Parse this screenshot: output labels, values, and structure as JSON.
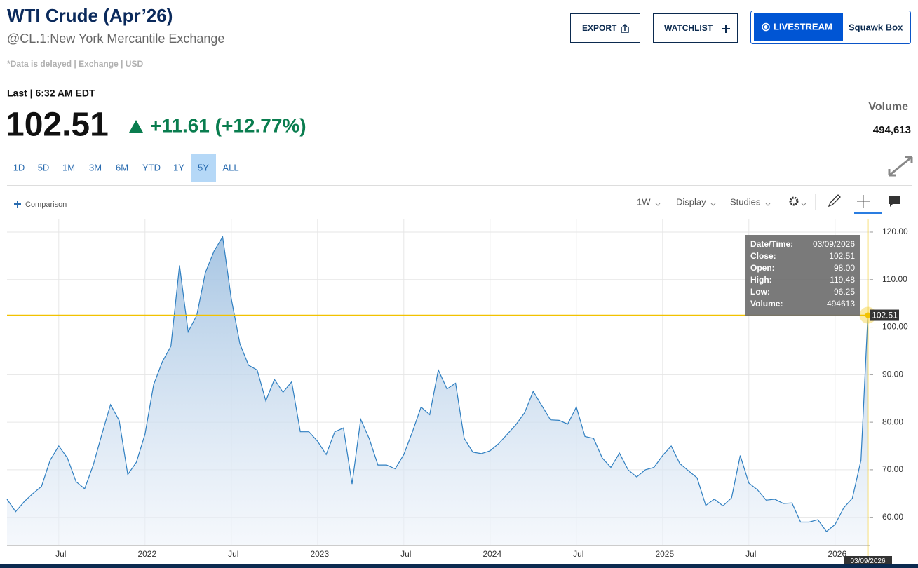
{
  "header": {
    "title": "WTI Crude (Apr’26)",
    "subtitle": "@CL.1:New York Mercantile Exchange",
    "note": "*Data is delayed | Exchange | USD"
  },
  "buttons": {
    "export": "EXPORT",
    "watchlist": "WATCHLIST",
    "livestream": "LIVESTREAM",
    "squawk": "Squawk Box"
  },
  "quote": {
    "last_time": "Last | 6:32 AM EDT",
    "price": "102.51",
    "change": "+11.61 (+12.77%)",
    "volume_label": "Volume",
    "volume": "494,613"
  },
  "ranges": [
    "1D",
    "5D",
    "1M",
    "3M",
    "6M",
    "YTD",
    "1Y",
    "5Y",
    "ALL"
  ],
  "selected_range": 7,
  "toolbar": {
    "comparison": "Comparison",
    "interval": "1W",
    "display": "Display",
    "studies": "Studies"
  },
  "tooltip": {
    "rows": [
      [
        "Date/Time:",
        "03/09/2026"
      ],
      [
        "Close:",
        "102.51"
      ],
      [
        "Open:",
        "98.00"
      ],
      [
        "High:",
        "119.48"
      ],
      [
        "Low:",
        "96.25"
      ],
      [
        "Volume:",
        "494613"
      ]
    ],
    "date_flag": "03/09/2026"
  },
  "chart_data": {
    "type": "area",
    "grid": true,
    "crosshair_color": "#f2c200",
    "x": [
      2021.2,
      2021.25,
      2021.3,
      2021.35,
      2021.4,
      2021.45,
      2021.5,
      2021.55,
      2021.6,
      2021.65,
      2021.7,
      2021.75,
      2021.8,
      2021.85,
      2021.9,
      2021.95,
      2022,
      2022.05,
      2022.1,
      2022.15,
      2022.2,
      2022.25,
      2022.3,
      2022.35,
      2022.4,
      2022.45,
      2022.5,
      2022.55,
      2022.6,
      2022.65,
      2022.7,
      2022.75,
      2022.8,
      2022.85,
      2022.9,
      2022.95,
      2023,
      2023.05,
      2023.1,
      2023.15,
      2023.2,
      2023.25,
      2023.3,
      2023.35,
      2023.4,
      2023.45,
      2023.5,
      2023.55,
      2023.6,
      2023.65,
      2023.7,
      2023.75,
      2023.8,
      2023.85,
      2023.9,
      2023.95,
      2024,
      2024.05,
      2024.1,
      2024.15,
      2024.2,
      2024.25,
      2024.3,
      2024.35,
      2024.4,
      2024.45,
      2024.5,
      2024.55,
      2024.6,
      2024.65,
      2024.7,
      2024.75,
      2024.8,
      2024.85,
      2024.9,
      2024.95,
      2025,
      2025.05,
      2025.1,
      2025.15,
      2025.2,
      2025.25,
      2025.3,
      2025.35,
      2025.4,
      2025.45,
      2025.5,
      2025.55,
      2025.6,
      2025.65,
      2025.7,
      2025.75,
      2025.8,
      2025.85,
      2025.9,
      2025.95,
      2026,
      2026.05,
      2026.1,
      2026.15,
      2026.19
    ],
    "series": [
      {
        "color": "#2f7fc1",
        "values": [
          63.8,
          61.2,
          63.3,
          65,
          66.5,
          72,
          75,
          72.5,
          67.5,
          66,
          71,
          77.5,
          83.7,
          80.4,
          69,
          71.6,
          77.5,
          87.9,
          92.7,
          96,
          113,
          99,
          102.5,
          111.5,
          116,
          119,
          106,
          96.5,
          92,
          91,
          84.5,
          89,
          86.3,
          88.5,
          78,
          78,
          76,
          73.2,
          78,
          78.8,
          67,
          80.6,
          76.5,
          71,
          71,
          70.2,
          73.2,
          78,
          83.2,
          81.6,
          91,
          87,
          88.2,
          76.6,
          73.7,
          73.4,
          74,
          75.5,
          77.5,
          79.5,
          82,
          86.5,
          83.5,
          80.5,
          80.4,
          79.6,
          83.2,
          77,
          76.6,
          72.5,
          70.5,
          73.5,
          70,
          68.5,
          70,
          70.5,
          73,
          75,
          71.3,
          69.8,
          68.3,
          62.5,
          63.8,
          62.4,
          64.1,
          73,
          67.2,
          65.8,
          63.6,
          63.8,
          62.9,
          63,
          59,
          59,
          59.5,
          57,
          58.5,
          62,
          64,
          72,
          102.51
        ]
      }
    ],
    "xlim": [
      2021.2,
      2026.2
    ],
    "xticks": [
      {
        "value": 2021.5,
        "label": "Jul"
      },
      2022,
      {
        "value": 2022.5,
        "label": "Jul"
      },
      2023,
      {
        "value": 2023.5,
        "label": "Jul"
      },
      2024,
      {
        "value": 2024.5,
        "label": "Jul"
      },
      2025,
      {
        "value": 2025.5,
        "label": "Jul"
      },
      2026
    ],
    "ylim": [
      54.2,
      122.8
    ],
    "yticks": [
      {
        "value": 60,
        "label": "60.00"
      },
      {
        "value": 70,
        "label": "70.00"
      },
      {
        "value": 80,
        "label": "80.00"
      },
      {
        "value": 90,
        "label": "90.00"
      },
      {
        "value": 100,
        "label": "100.00"
      },
      {
        "value": 110,
        "label": "110.00"
      },
      {
        "value": 120,
        "label": "120.00"
      }
    ]
  }
}
